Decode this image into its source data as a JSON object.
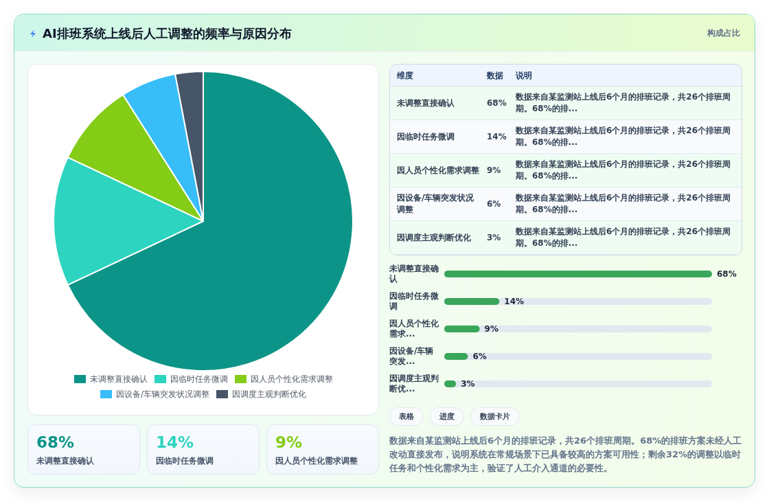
{
  "chart_data": [
    {
      "type": "pie",
      "title": "AI排班系统上线后人工调整的频率与原因分布",
      "categories": [
        "未调整直接确认",
        "因临时任务微调",
        "因人员个性化需求调整",
        "因设备/车辆突发状况调整",
        "因调度主观判断优化"
      ],
      "values": [
        68,
        14,
        9,
        6,
        3
      ],
      "colors": [
        "#0d9488",
        "#2dd4bf",
        "#84cc16",
        "#38bdf8",
        "#475569"
      ],
      "legend": "bottom"
    },
    {
      "type": "other",
      "subtitle": "构成占比",
      "categories": [
        "未调整直接确认",
        "因临时任务微调",
        "因人员个性化需求调整",
        "因设备/车辆突发状况调整",
        "因调度主观判断优化"
      ],
      "value_labels": [
        "68%",
        "14%",
        "9%",
        "6%",
        "3%"
      ],
      "annotations": [
        "维度",
        "数据",
        "说明",
        "数据来自某监测站上线后6个月的排班记录，共26个排班周期。68%的排...",
        "数据来自某监测站上线后6个月的排班记录，共26个排班周期。68%的排...",
        "数据来自某监测站上线后6个月的排班记录，共26个排班周期。68%的排...",
        "数据来自某监测站上线后6个月的排班记录，共26个排班周期。68%的排...",
        "数据来自某监测站上线后6个月的排班记录，共26个排班周期。68%的排..."
      ]
    },
    {
      "type": "bar",
      "orientation": "horizontal",
      "categories": [
        "未调整直接确认",
        "因临时任务微调",
        "因人员个性化需求...",
        "因设备/车辆突发...",
        "因调度主观判断优..."
      ],
      "values": [
        68,
        14,
        9,
        6,
        3
      ],
      "value_labels": [
        "68%",
        "14%",
        "9%",
        "6%",
        "3%"
      ],
      "color": "#3aa65a",
      "tick_labels": "y",
      "annotations": [
        "表格",
        "进度",
        "数据卡片",
        "数据来自某监测站上线后6个月的排班记录，共26个排班周期。68%的排班方案未经人工改动直接发布，说明系统在常规场景下已具备较高的方案可用性；剩余32%的调整以临时任务和个性化需求为主，验证了人工介入通道的必要性。"
      ]
    },
    {
      "type": "other",
      "categories": [
        "未调整直接确认",
        "因临时任务微调",
        "因人员个性化需求调整"
      ],
      "value_labels": [
        "68%",
        "14%",
        "9%"
      ],
      "colors": [
        "#0d9488",
        "#2dd4bf",
        "#84cc16"
      ]
    }
  ]
}
